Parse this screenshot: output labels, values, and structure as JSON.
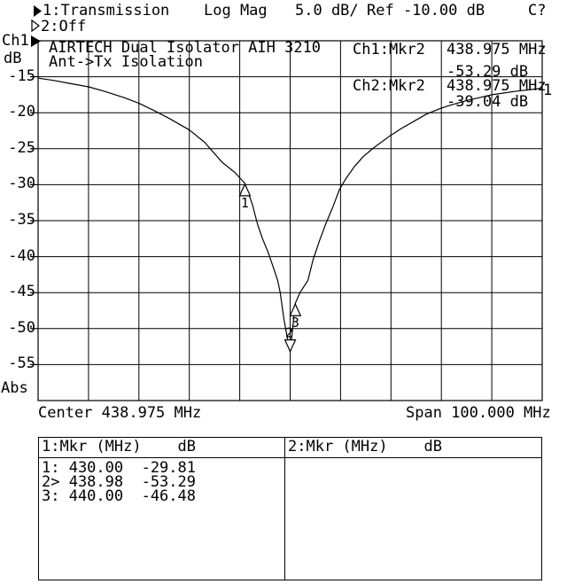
{
  "colors": {
    "fg": "#000000",
    "bg": "#ffffff"
  },
  "status_bar": {
    "line1": {
      "ch1_label": "1:Transmission",
      "format": "Log Mag",
      "scale": "5.0 dB/",
      "ref": "Ref -10.00 dB",
      "cal": "C?"
    },
    "line2": {
      "ch2_label": "2:Off"
    }
  },
  "axis": {
    "channel": "Ch1",
    "unit": "dB",
    "y_labels": [
      "-15",
      "-20",
      "-25",
      "-30",
      "-35",
      "-40",
      "-45",
      "-50",
      "-55"
    ],
    "bottom_label": "Abs",
    "center": "Center 438.975 MHz",
    "span": "Span 100.000 MHz"
  },
  "graph": {
    "title_line1": "AIRTECH Dual Isolator AIH 3210",
    "title_line2": "Ant->Tx Isolation",
    "trace_number": "1",
    "info": [
      {
        "ch": "Ch1:Mkr2",
        "freq": "438.975 MHz",
        "value": "-53.29 dB"
      },
      {
        "ch": "Ch2:Mkr2",
        "freq": "438.975 MHz",
        "value": "-39.04 dB"
      }
    ]
  },
  "chart_data": {
    "type": "line",
    "title": "AIRTECH Dual Isolator AIH 3210 Ant->Tx Isolation",
    "ylabel": "dB",
    "y_ref_db": -10.0,
    "y_scale_db_per_div": 5.0,
    "ylim": [
      -60,
      -10
    ],
    "x_center_mhz": 438.975,
    "x_span_mhz": 100.0,
    "x_range_mhz": [
      388.975,
      488.975
    ],
    "grid_divisions": [
      10,
      10
    ],
    "series": [
      {
        "name": "Trace 1",
        "points": [
          [
            388.975,
            -15.2
          ],
          [
            392,
            -15.5
          ],
          [
            395,
            -15.9
          ],
          [
            399,
            -16.4
          ],
          [
            402,
            -17.0
          ],
          [
            406,
            -17.9
          ],
          [
            409,
            -18.7
          ],
          [
            412,
            -19.7
          ],
          [
            415,
            -20.8
          ],
          [
            419,
            -22.4
          ],
          [
            422,
            -24.1
          ],
          [
            425.5,
            -26.9
          ],
          [
            428,
            -28.3
          ],
          [
            430,
            -29.81
          ],
          [
            431.5,
            -32.8
          ],
          [
            432.5,
            -35.5
          ],
          [
            433.5,
            -37.5
          ],
          [
            434.5,
            -39.2
          ],
          [
            435.5,
            -41.2
          ],
          [
            436.5,
            -43.3
          ],
          [
            437,
            -45.0
          ],
          [
            437.75,
            -48.7
          ],
          [
            438.4,
            -51.2
          ],
          [
            438.98,
            -53.29
          ],
          [
            439.5,
            -49.8
          ],
          [
            440,
            -46.48
          ],
          [
            441,
            -44.9
          ],
          [
            442.5,
            -43.3
          ],
          [
            443.5,
            -40.5
          ],
          [
            444.8,
            -37.8
          ],
          [
            446,
            -35.5
          ],
          [
            447.5,
            -33.0
          ],
          [
            448.8,
            -30.6
          ],
          [
            450,
            -29.2
          ],
          [
            451.8,
            -27.4
          ],
          [
            453.5,
            -26.1
          ],
          [
            455.5,
            -24.9
          ],
          [
            458.8,
            -23.2
          ],
          [
            461,
            -22.2
          ],
          [
            464,
            -21.0
          ],
          [
            466,
            -20.2
          ],
          [
            468.8,
            -19.4
          ],
          [
            471,
            -18.9
          ],
          [
            474,
            -18.3
          ],
          [
            479,
            -17.5
          ],
          [
            484,
            -17.0
          ],
          [
            488.975,
            -16.6
          ]
        ]
      }
    ],
    "markers": [
      {
        "n": "1",
        "freq_mhz": 430.0,
        "db": -29.81,
        "active": false
      },
      {
        "n": "2",
        "freq_mhz": 438.98,
        "db": -53.29,
        "active": true
      },
      {
        "n": "3",
        "freq_mhz": 440.0,
        "db": -46.48,
        "active": false
      }
    ]
  },
  "marker_table": {
    "panels": [
      {
        "header": "1:Mkr (MHz)    dB",
        "rows": [
          "1: 430.00  -29.81",
          "2> 438.98  -53.29",
          "3: 440.00  -46.48"
        ]
      },
      {
        "header": "2:Mkr (MHz)    dB",
        "rows": []
      }
    ]
  }
}
